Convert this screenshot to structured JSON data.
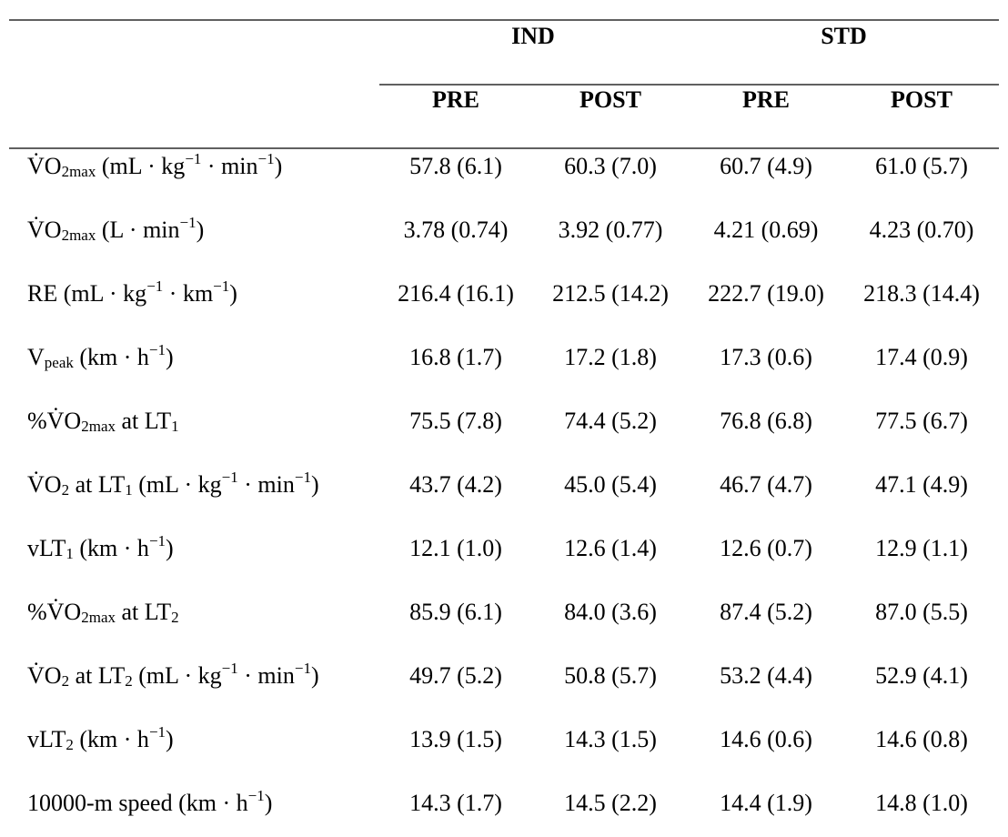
{
  "header": {
    "groups": [
      "IND",
      "STD"
    ],
    "columns": [
      "PRE",
      "POST",
      "PRE",
      "POST"
    ]
  },
  "rows": [
    {
      "label": [
        {
          "text": "V̇O"
        },
        {
          "text": "2max",
          "sub": true
        },
        {
          "text": " (mL · kg"
        },
        {
          "text": "−1",
          "sup": true
        },
        {
          "text": " · min"
        },
        {
          "text": "−1",
          "sup": true
        },
        {
          "text": ")"
        }
      ],
      "values": [
        "57.8 (6.1)",
        "60.3 (7.0)",
        "60.7 (4.9)",
        "61.0 (5.7)"
      ]
    },
    {
      "label": [
        {
          "text": "V̇O"
        },
        {
          "text": "2max",
          "sub": true
        },
        {
          "text": " (L · min"
        },
        {
          "text": "−1",
          "sup": true
        },
        {
          "text": ")"
        }
      ],
      "values": [
        "3.78 (0.74)",
        "3.92 (0.77)",
        "4.21 (0.69)",
        "4.23 (0.70)"
      ]
    },
    {
      "label": [
        {
          "text": "RE (mL · kg"
        },
        {
          "text": "−1",
          "sup": true
        },
        {
          "text": " · km"
        },
        {
          "text": "−1",
          "sup": true
        },
        {
          "text": ")"
        }
      ],
      "values": [
        "216.4 (16.1)",
        "212.5 (14.2)",
        "222.7 (19.0)",
        "218.3 (14.4)"
      ]
    },
    {
      "label": [
        {
          "text": "V"
        },
        {
          "text": "peak",
          "sub": true
        },
        {
          "text": " (km · h"
        },
        {
          "text": "−1",
          "sup": true
        },
        {
          "text": ")"
        }
      ],
      "values": [
        "16.8 (1.7)",
        "17.2 (1.8)",
        "17.3 (0.6)",
        "17.4 (0.9)"
      ]
    },
    {
      "label": [
        {
          "text": "%V̇O"
        },
        {
          "text": "2max",
          "sub": true
        },
        {
          "text": " at LT"
        },
        {
          "text": "1",
          "sub": true
        }
      ],
      "values": [
        "75.5 (7.8)",
        "74.4 (5.2)",
        "76.8 (6.8)",
        "77.5 (6.7)"
      ]
    },
    {
      "label": [
        {
          "text": "V̇O"
        },
        {
          "text": "2",
          "sub": true
        },
        {
          "text": " at LT"
        },
        {
          "text": "1",
          "sub": true
        },
        {
          "text": " (mL · kg"
        },
        {
          "text": "−1",
          "sup": true
        },
        {
          "text": " · min"
        },
        {
          "text": "−1",
          "sup": true
        },
        {
          "text": ")"
        }
      ],
      "values": [
        "43.7 (4.2)",
        "45.0 (5.4)",
        "46.7 (4.7)",
        "47.1 (4.9)"
      ]
    },
    {
      "label": [
        {
          "text": "vLT"
        },
        {
          "text": "1",
          "sub": true
        },
        {
          "text": " (km · h"
        },
        {
          "text": "−1",
          "sup": true
        },
        {
          "text": ")"
        }
      ],
      "values": [
        "12.1 (1.0)",
        "12.6 (1.4)",
        "12.6 (0.7)",
        "12.9 (1.1)"
      ]
    },
    {
      "label": [
        {
          "text": "%V̇O"
        },
        {
          "text": "2max",
          "sub": true
        },
        {
          "text": " at LT"
        },
        {
          "text": "2",
          "sub": true
        }
      ],
      "values": [
        "85.9 (6.1)",
        "84.0 (3.6)",
        "87.4 (5.2)",
        "87.0 (5.5)"
      ]
    },
    {
      "label": [
        {
          "text": "V̇O"
        },
        {
          "text": "2",
          "sub": true
        },
        {
          "text": " at LT"
        },
        {
          "text": "2",
          "sub": true
        },
        {
          "text": " (mL · kg"
        },
        {
          "text": "−1",
          "sup": true
        },
        {
          "text": " · min"
        },
        {
          "text": "−1",
          "sup": true
        },
        {
          "text": ")"
        }
      ],
      "values": [
        "49.7 (5.2)",
        "50.8 (5.7)",
        "53.2 (4.4)",
        "52.9 (4.1)"
      ]
    },
    {
      "label": [
        {
          "text": "vLT"
        },
        {
          "text": "2",
          "sub": true
        },
        {
          "text": " (km · h"
        },
        {
          "text": "−1",
          "sup": true
        },
        {
          "text": ")"
        }
      ],
      "values": [
        "13.9 (1.5)",
        "14.3 (1.5)",
        "14.6 (0.6)",
        "14.6 (0.8)"
      ]
    },
    {
      "label": [
        {
          "text": "10000-m speed (km · h"
        },
        {
          "text": "−1",
          "sup": true
        },
        {
          "text": ")"
        }
      ],
      "values": [
        "14.3 (1.7)",
        "14.5 (2.2)",
        "14.4 (1.9)",
        "14.8 (1.0)"
      ]
    }
  ]
}
